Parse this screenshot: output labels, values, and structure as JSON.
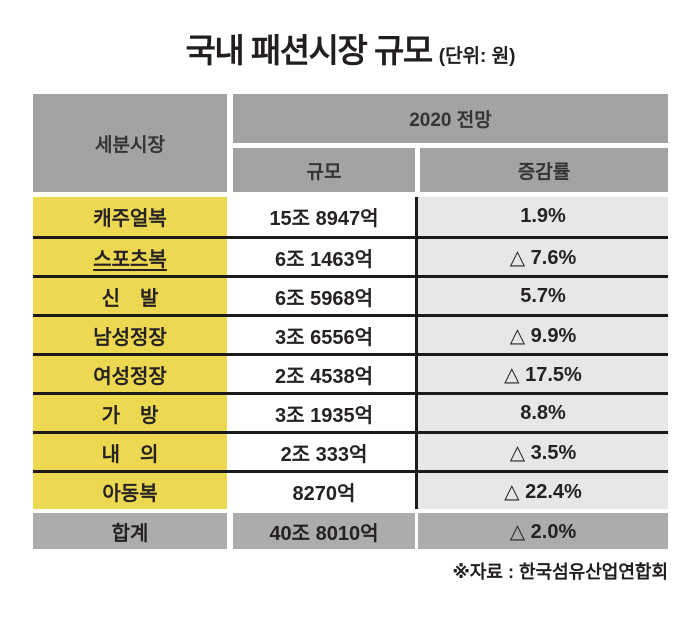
{
  "title": {
    "main": "국내 패션시장 규모",
    "unit": "(단위: 원)"
  },
  "table": {
    "header": {
      "segment": "세분시장",
      "group": "2020 전망",
      "size": "규모",
      "change": "증감률"
    },
    "rows": [
      {
        "label": "캐주얼복",
        "size": "15조 8947억",
        "change": "1.9%",
        "underline": false
      },
      {
        "label": "스포츠복",
        "size": "6조 1463억",
        "change": "△ 7.6%",
        "underline": true
      },
      {
        "label": "신　발",
        "size": "6조 5968억",
        "change": "5.7%",
        "underline": false
      },
      {
        "label": "남성정장",
        "size": "3조 6556억",
        "change": "△ 9.9%",
        "underline": false
      },
      {
        "label": "여성정장",
        "size": "2조 4538억",
        "change": "△ 17.5%",
        "underline": false
      },
      {
        "label": "가　방",
        "size": "3조 1935억",
        "change": "8.8%",
        "underline": false
      },
      {
        "label": "내　의",
        "size": "2조 333억",
        "change": "△ 3.5%",
        "underline": false
      },
      {
        "label": "아동복",
        "size": "8270억",
        "change": "△ 22.4%",
        "underline": false
      }
    ],
    "total": {
      "label": "합계",
      "size": "40조 8010억",
      "change": "△ 2.0%"
    }
  },
  "source": "※자료 : 한국섬유산업연합회",
  "colors": {
    "category_yellow": "#EDD851",
    "header_gray": "#A3A3A3",
    "total_gray": "#ACACAC",
    "change_cell_gray": "#E7E7E7",
    "line_black": "#1D1A1B",
    "text": "#262223"
  },
  "chart_data": {
    "type": "table",
    "title": "국내 패션시장 규모 (단위: 원)",
    "columns": [
      "세분시장",
      "2020 전망 규모",
      "2020 전망 증감률"
    ],
    "rows": [
      [
        "캐주얼복",
        "15조 8947억",
        "1.9%"
      ],
      [
        "스포츠복",
        "6조 1463억",
        "△ 7.6%"
      ],
      [
        "신발",
        "6조 5968억",
        "5.7%"
      ],
      [
        "남성정장",
        "3조 6556억",
        "△ 9.9%"
      ],
      [
        "여성정장",
        "2조 4538억",
        "△ 17.5%"
      ],
      [
        "가방",
        "3조 1935억",
        "8.8%"
      ],
      [
        "내의",
        "2조 333억",
        "△ 3.5%"
      ],
      [
        "아동복",
        "8270억",
        "△ 22.4%"
      ],
      [
        "합계",
        "40조 8010억",
        "△ 2.0%"
      ]
    ],
    "source": "※자료 : 한국섬유산업연합회"
  }
}
